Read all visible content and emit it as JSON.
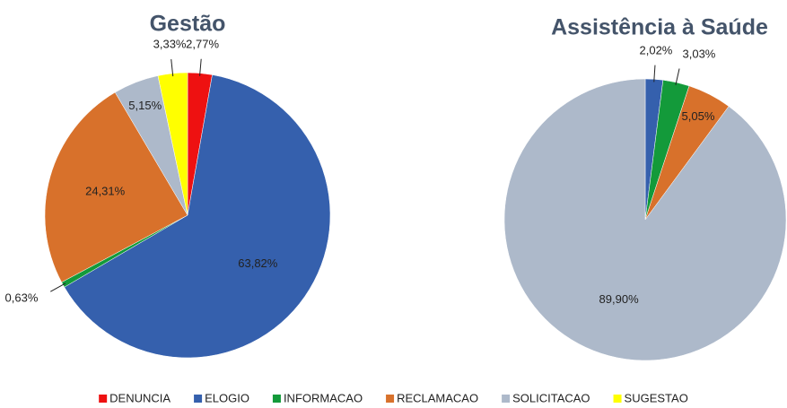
{
  "chart_data": [
    {
      "type": "pie",
      "title": "Gestão",
      "categories": [
        "DENUNCIA",
        "ELOGIO",
        "INFORMACAO",
        "RECLAMACAO",
        "SOLICITACAO",
        "SUGESTAO"
      ],
      "values": [
        2.77,
        63.82,
        0.63,
        24.31,
        5.15,
        3.33
      ],
      "value_labels": [
        "2,77%",
        "63,82%",
        "0,63%",
        "24,31%",
        "5,15%",
        "3,33%"
      ],
      "colors": [
        "#ee1111",
        "#3560ad",
        "#139a3a",
        "#d8712b",
        "#adb9ca",
        "#ffff00"
      ],
      "legend": "bottom"
    },
    {
      "type": "pie",
      "title": "Assistência à Saúde",
      "categories": [
        "ELOGIO",
        "INFORMACAO",
        "RECLAMACAO",
        "SOLICITACAO"
      ],
      "values": [
        2.02,
        3.03,
        5.05,
        89.9
      ],
      "value_labels": [
        "2,02%",
        "3,03%",
        "5,05%",
        "89,90%"
      ],
      "colors": [
        "#3560ad",
        "#139a3a",
        "#d8712b",
        "#adb9ca"
      ]
    }
  ]
}
